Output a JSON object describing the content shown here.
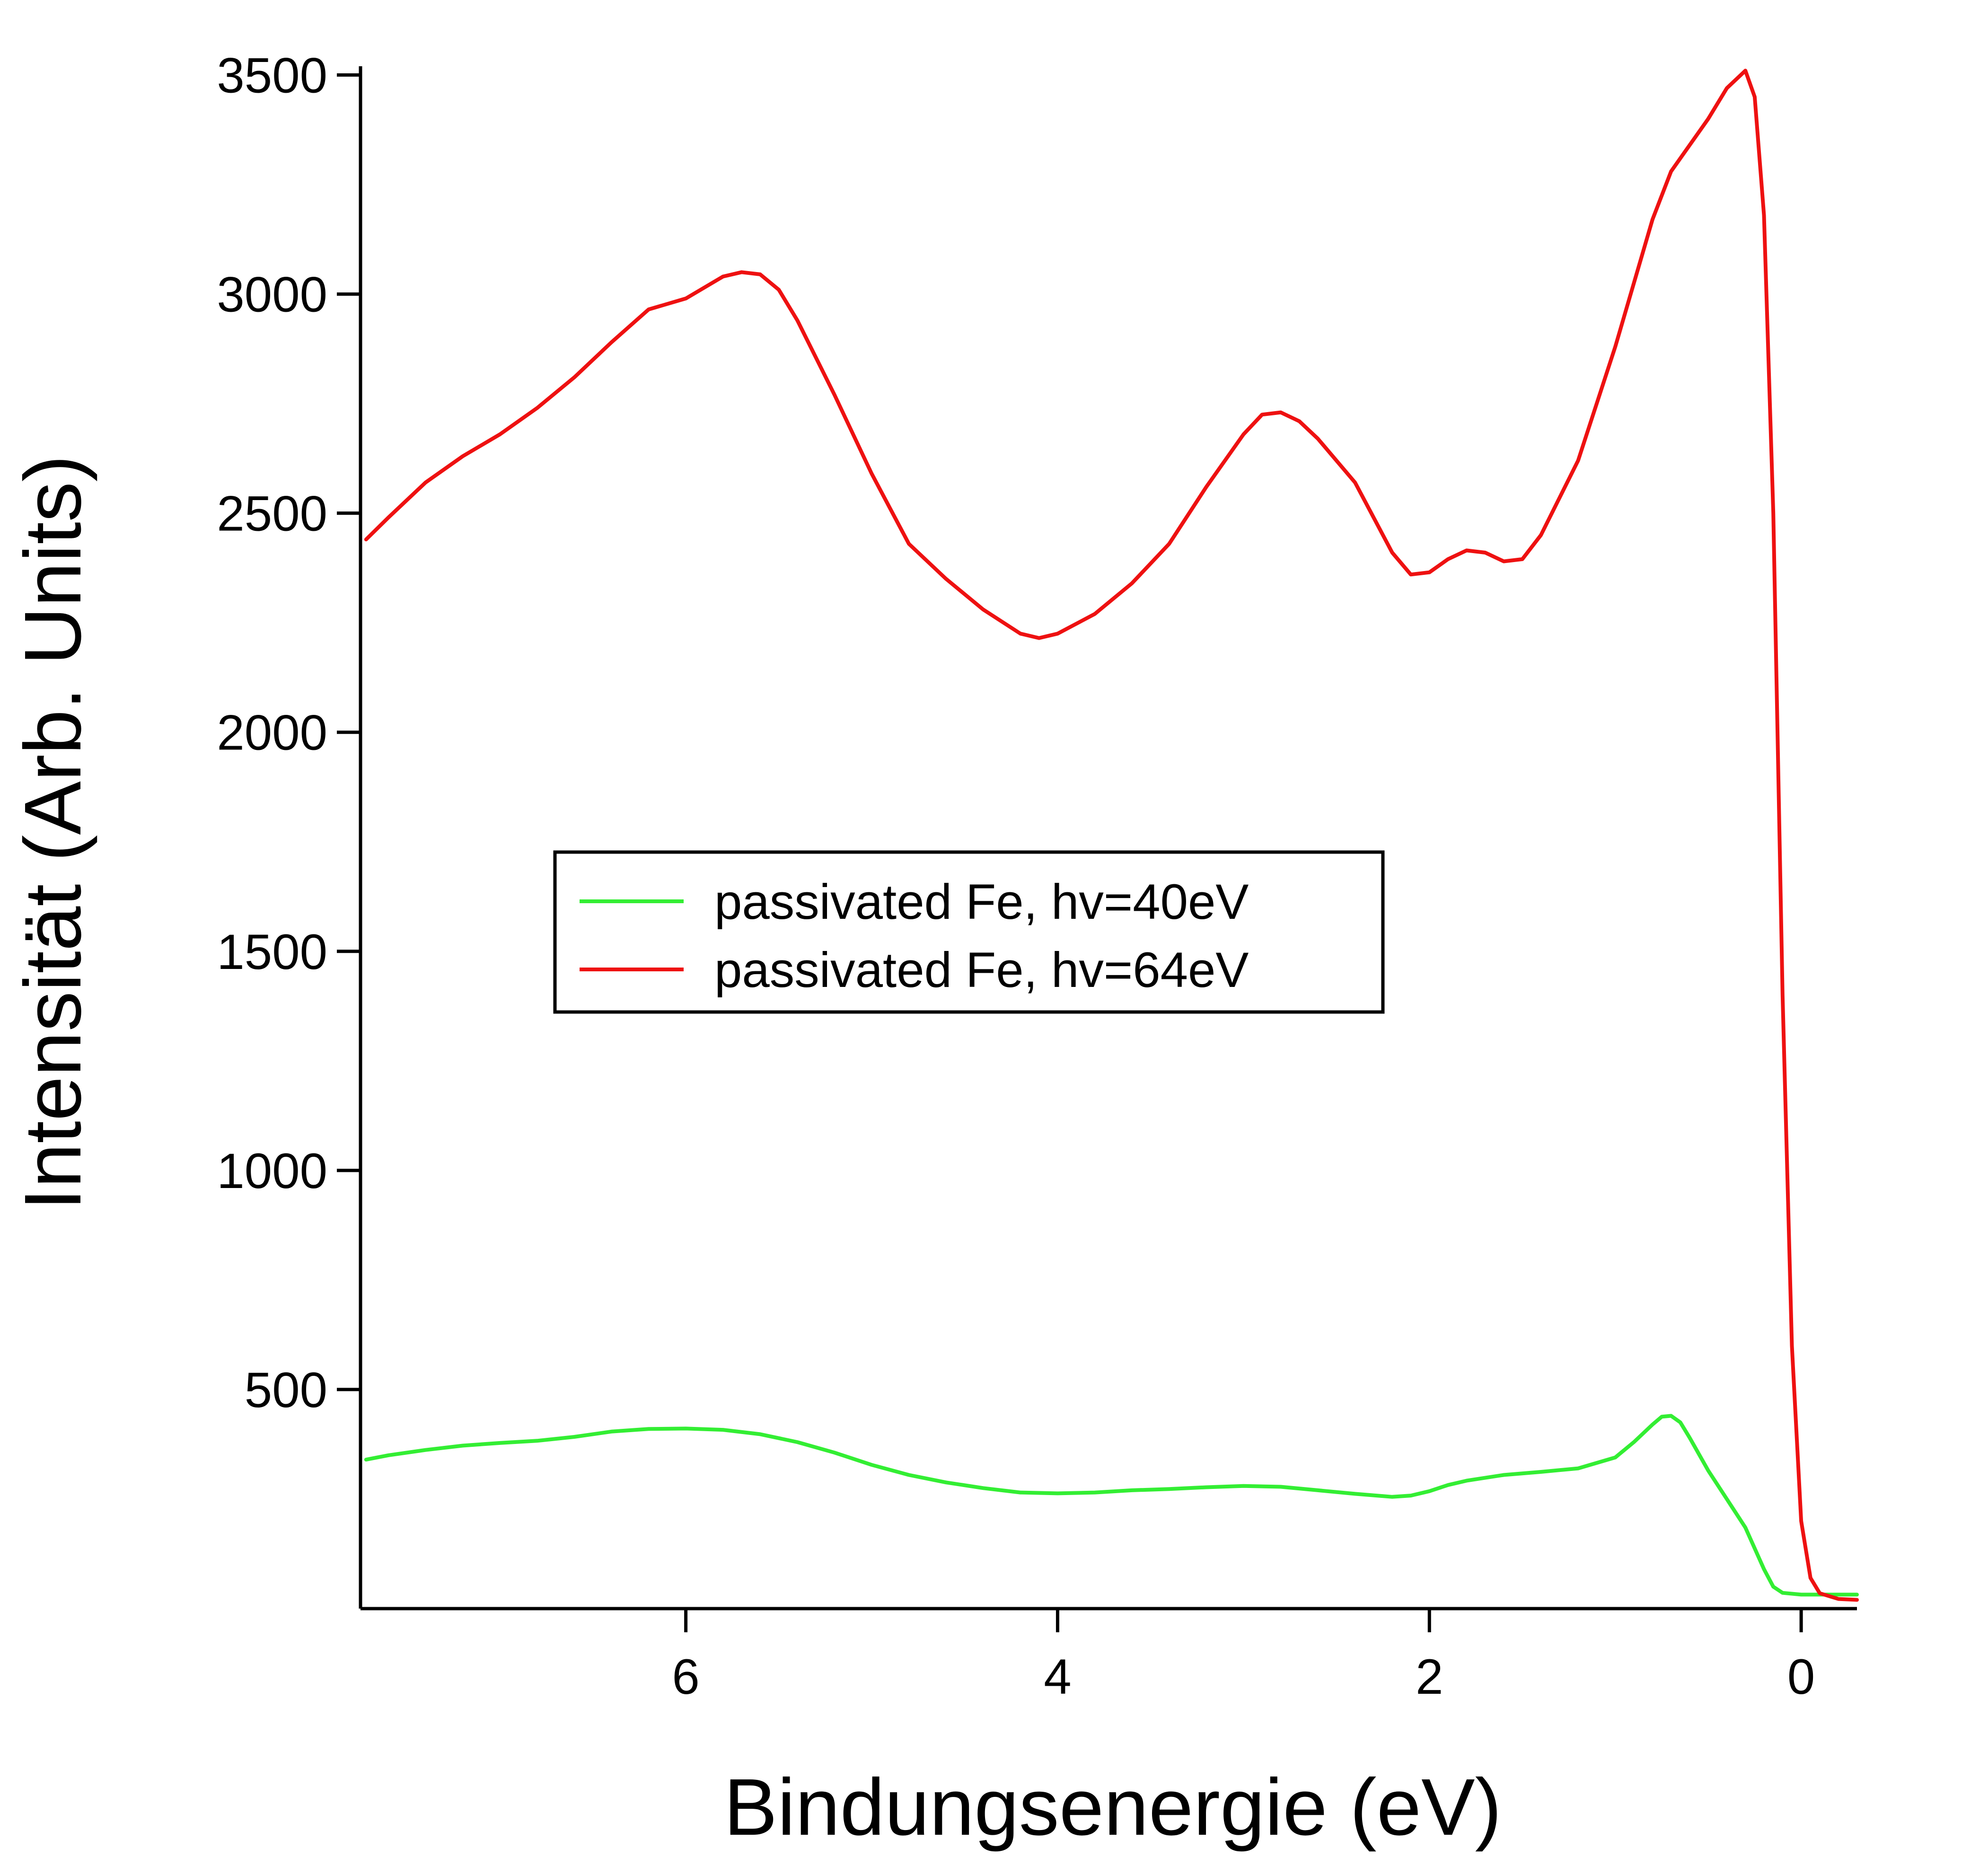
{
  "chart_data": {
    "type": "line",
    "xlabel": "Bindungsenergie (eV)",
    "ylabel": "Intensität (Arb. Units)",
    "xlim": [
      7.75,
      -0.3
    ],
    "ylim": [
      0,
      3520
    ],
    "x_reversed": true,
    "x_ticks": [
      6,
      4,
      2,
      0
    ],
    "y_ticks": [
      500,
      1000,
      1500,
      2000,
      2500,
      3000,
      3500
    ],
    "grid": false,
    "legend_position": "center-left",
    "series": [
      {
        "name": "passivated Fe, hv=40eV",
        "color": "#33ee33",
        "points": [
          [
            7.72,
            340
          ],
          [
            7.6,
            350
          ],
          [
            7.4,
            362
          ],
          [
            7.2,
            372
          ],
          [
            7.0,
            378
          ],
          [
            6.8,
            383
          ],
          [
            6.6,
            392
          ],
          [
            6.4,
            404
          ],
          [
            6.2,
            410
          ],
          [
            6.0,
            411
          ],
          [
            5.8,
            408
          ],
          [
            5.6,
            398
          ],
          [
            5.4,
            380
          ],
          [
            5.2,
            356
          ],
          [
            5.0,
            328
          ],
          [
            4.8,
            305
          ],
          [
            4.6,
            288
          ],
          [
            4.4,
            275
          ],
          [
            4.2,
            265
          ],
          [
            4.0,
            263
          ],
          [
            3.8,
            265
          ],
          [
            3.6,
            270
          ],
          [
            3.4,
            273
          ],
          [
            3.2,
            277
          ],
          [
            3.0,
            280
          ],
          [
            2.8,
            278
          ],
          [
            2.6,
            270
          ],
          [
            2.4,
            262
          ],
          [
            2.2,
            255
          ],
          [
            2.1,
            258
          ],
          [
            2.0,
            268
          ],
          [
            1.9,
            282
          ],
          [
            1.8,
            292
          ],
          [
            1.6,
            305
          ],
          [
            1.4,
            312
          ],
          [
            1.2,
            320
          ],
          [
            1.0,
            345
          ],
          [
            0.9,
            380
          ],
          [
            0.8,
            420
          ],
          [
            0.75,
            438
          ],
          [
            0.7,
            440
          ],
          [
            0.65,
            425
          ],
          [
            0.6,
            390
          ],
          [
            0.5,
            315
          ],
          [
            0.4,
            250
          ],
          [
            0.3,
            185
          ],
          [
            0.2,
            90
          ],
          [
            0.15,
            50
          ],
          [
            0.1,
            36
          ],
          [
            0.0,
            32
          ],
          [
            -0.3,
            32
          ]
        ]
      },
      {
        "name": "passivated Fe, hv=64eV",
        "color": "#ee1111",
        "points": [
          [
            7.72,
            2440
          ],
          [
            7.6,
            2490
          ],
          [
            7.4,
            2570
          ],
          [
            7.2,
            2630
          ],
          [
            7.0,
            2680
          ],
          [
            6.8,
            2740
          ],
          [
            6.6,
            2810
          ],
          [
            6.4,
            2890
          ],
          [
            6.2,
            2965
          ],
          [
            6.0,
            2990
          ],
          [
            5.8,
            3040
          ],
          [
            5.7,
            3050
          ],
          [
            5.6,
            3045
          ],
          [
            5.5,
            3010
          ],
          [
            5.4,
            2940
          ],
          [
            5.2,
            2770
          ],
          [
            5.0,
            2590
          ],
          [
            4.8,
            2430
          ],
          [
            4.6,
            2350
          ],
          [
            4.4,
            2280
          ],
          [
            4.2,
            2225
          ],
          [
            4.1,
            2215
          ],
          [
            4.0,
            2225
          ],
          [
            3.8,
            2270
          ],
          [
            3.6,
            2340
          ],
          [
            3.4,
            2430
          ],
          [
            3.2,
            2560
          ],
          [
            3.0,
            2680
          ],
          [
            2.9,
            2725
          ],
          [
            2.8,
            2730
          ],
          [
            2.7,
            2710
          ],
          [
            2.6,
            2670
          ],
          [
            2.4,
            2570
          ],
          [
            2.2,
            2410
          ],
          [
            2.1,
            2360
          ],
          [
            2.0,
            2365
          ],
          [
            1.9,
            2395
          ],
          [
            1.8,
            2415
          ],
          [
            1.7,
            2410
          ],
          [
            1.6,
            2390
          ],
          [
            1.5,
            2395
          ],
          [
            1.4,
            2450
          ],
          [
            1.2,
            2620
          ],
          [
            1.0,
            2880
          ],
          [
            0.8,
            3170
          ],
          [
            0.7,
            3280
          ],
          [
            0.6,
            3340
          ],
          [
            0.5,
            3400
          ],
          [
            0.4,
            3470
          ],
          [
            0.3,
            3510
          ],
          [
            0.25,
            3450
          ],
          [
            0.2,
            3180
          ],
          [
            0.15,
            2500
          ],
          [
            0.1,
            1400
          ],
          [
            0.05,
            600
          ],
          [
            0.0,
            200
          ],
          [
            -0.05,
            70
          ],
          [
            -0.1,
            35
          ],
          [
            -0.2,
            22
          ],
          [
            -0.3,
            20
          ]
        ]
      }
    ]
  }
}
